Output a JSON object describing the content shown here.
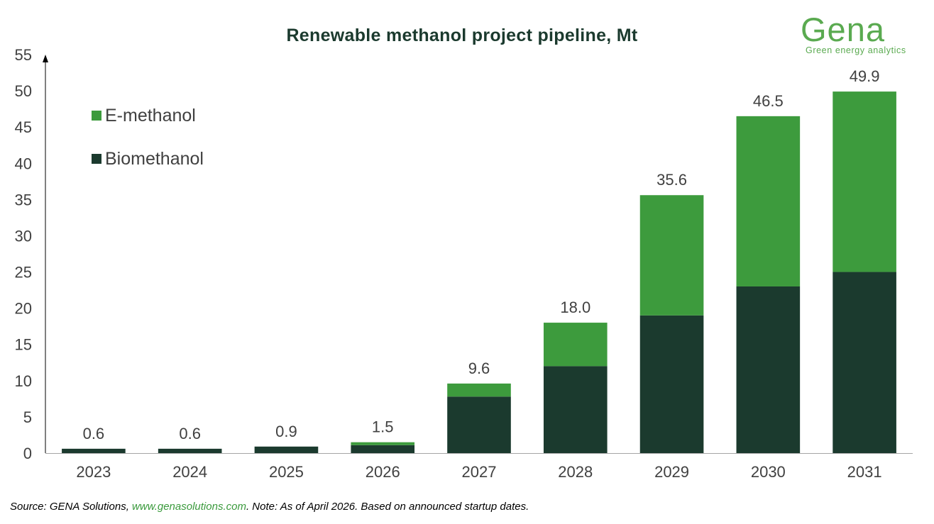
{
  "colors": {
    "biomethanol": "#1b3a2e",
    "e_methanol": "#3d9b3d",
    "title": "#1b3a2e",
    "logo": "#5aaa50",
    "link": "#3a9a3c"
  },
  "logo": {
    "wordmark": "Gena",
    "tagline": "Green energy analytics"
  },
  "footer": {
    "prefix": "Source: GENA Solutions, ",
    "link_text": "www.genasolutions.com",
    "suffix": ". Note: As of April 2026. Based on announced startup dates."
  },
  "chart_data": {
    "type": "bar",
    "stacked": true,
    "title": "Renewable methanol project pipeline, Mt",
    "xlabel": "",
    "ylabel": "",
    "ylim": [
      0,
      55
    ],
    "yticks": [
      0,
      5,
      10,
      15,
      20,
      25,
      30,
      35,
      40,
      45,
      50,
      55
    ],
    "grid": false,
    "legend_position": "top-left",
    "categories": [
      "2023",
      "2024",
      "2025",
      "2026",
      "2027",
      "2028",
      "2029",
      "2030",
      "2031"
    ],
    "series": [
      {
        "name": "Biomethanol",
        "color": "#1b3a2e",
        "values": [
          0.6,
          0.6,
          0.9,
          1.1,
          7.8,
          12.0,
          19.0,
          23.0,
          25.0
        ]
      },
      {
        "name": "E-methanol",
        "color": "#3d9b3d",
        "values": [
          0.0,
          0.0,
          0.0,
          0.4,
          1.8,
          6.0,
          16.6,
          23.5,
          24.9
        ]
      }
    ],
    "totals": [
      "0.6",
      "0.6",
      "0.9",
      "1.5",
      "9.6",
      "18.0",
      "35.6",
      "46.5",
      "49.9"
    ],
    "legend_order": [
      "E-methanol",
      "Biomethanol"
    ]
  }
}
